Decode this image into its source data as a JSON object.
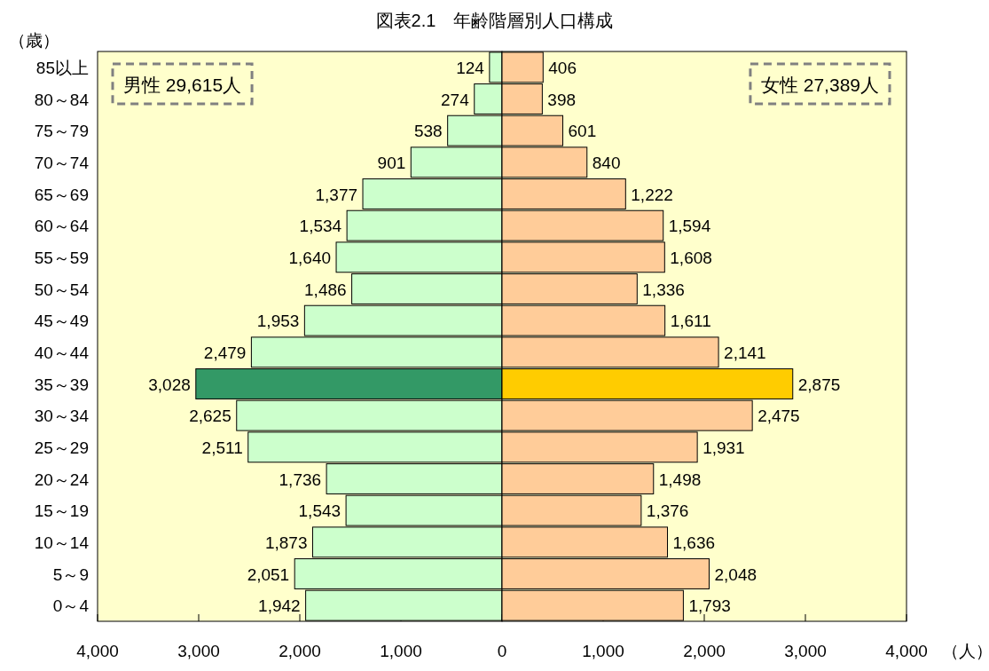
{
  "chart_data": [
    {
      "type": "bar",
      "orientation": "horizontal",
      "title": "図表2.1　年齢階層別人口構成",
      "ylabel": "（歳）",
      "categories": [
        "85以上",
        "80～84",
        "75～79",
        "70～74",
        "65～69",
        "60～64",
        "55～59",
        "50～54",
        "45～49",
        "40～44",
        "35～39",
        "30～34",
        "25～29",
        "20～24",
        "15～19",
        "10～14",
        "5～9",
        "0～4"
      ],
      "xlim": [
        4000,
        0
      ],
      "xticks": [
        {
          "value": 4000,
          "label": "4,000"
        },
        {
          "value": 3000,
          "label": "3,000"
        },
        {
          "value": 2000,
          "label": "2,000"
        },
        {
          "value": 1000,
          "label": "1,000"
        },
        0
      ],
      "series": [
        {
          "values": [
            124,
            274,
            538,
            901,
            1377,
            1534,
            1640,
            1486,
            1953,
            2479,
            3028,
            2625,
            2511,
            1736,
            1543,
            1873,
            2051,
            1942
          ],
          "value_labels": [
            "124",
            "274",
            "538",
            "901",
            "1,377",
            "1,534",
            "1,640",
            "1,486",
            "1,953",
            "2,479",
            "3,028",
            "2,625",
            "2,511",
            "1,736",
            "1,543",
            "1,873",
            "2,051",
            "1,942"
          ],
          "colors": [
            "#ccffcc",
            "#ccffcc",
            "#ccffcc",
            "#ccffcc",
            "#ccffcc",
            "#ccffcc",
            "#ccffcc",
            "#ccffcc",
            "#ccffcc",
            "#ccffcc",
            "#339966",
            "#ccffcc",
            "#ccffcc",
            "#ccffcc",
            "#ccffcc",
            "#ccffcc",
            "#ccffcc",
            "#ccffcc"
          ]
        }
      ],
      "annotations": [
        "男性 29,615人"
      ]
    },
    {
      "type": "bar",
      "orientation": "horizontal",
      "xlabel": "（人）",
      "tick_labels": "x",
      "categories": [
        "85以上",
        "80～84",
        "75～79",
        "70～74",
        "65～69",
        "60～64",
        "55～59",
        "50～54",
        "45～49",
        "40～44",
        "35～39",
        "30～34",
        "25～29",
        "20～24",
        "15～19",
        "10～14",
        "5～9",
        "0～4"
      ],
      "xlim": [
        0,
        4000
      ],
      "xticks": [
        {
          "value": 0,
          "label": null
        },
        {
          "value": 1000,
          "label": "1,000"
        },
        {
          "value": 2000,
          "label": "2,000"
        },
        {
          "value": 3000,
          "label": "3,000"
        },
        {
          "value": 4000,
          "label": "4,000"
        }
      ],
      "series": [
        {
          "values": [
            406,
            398,
            601,
            840,
            1222,
            1594,
            1608,
            1336,
            1611,
            2141,
            2875,
            2475,
            1931,
            1498,
            1376,
            1636,
            2048,
            1793
          ],
          "value_labels": [
            "406",
            "398",
            "601",
            "840",
            "1,222",
            "1,594",
            "1,608",
            "1,336",
            "1,611",
            "2,141",
            "2,875",
            "2,475",
            "1,931",
            "1,498",
            "1,376",
            "1,636",
            "2,048",
            "1,793"
          ],
          "colors": [
            "#ffcc99",
            "#ffcc99",
            "#ffcc99",
            "#ffcc99",
            "#ffcc99",
            "#ffcc99",
            "#ffcc99",
            "#ffcc99",
            "#ffcc99",
            "#ffcc99",
            "#ffcc00",
            "#ffcc99",
            "#ffcc99",
            "#ffcc99",
            "#ffcc99",
            "#ffcc99",
            "#ffcc99",
            "#ffcc99"
          ]
        }
      ],
      "annotations": [
        "女性 27,389人"
      ]
    }
  ]
}
